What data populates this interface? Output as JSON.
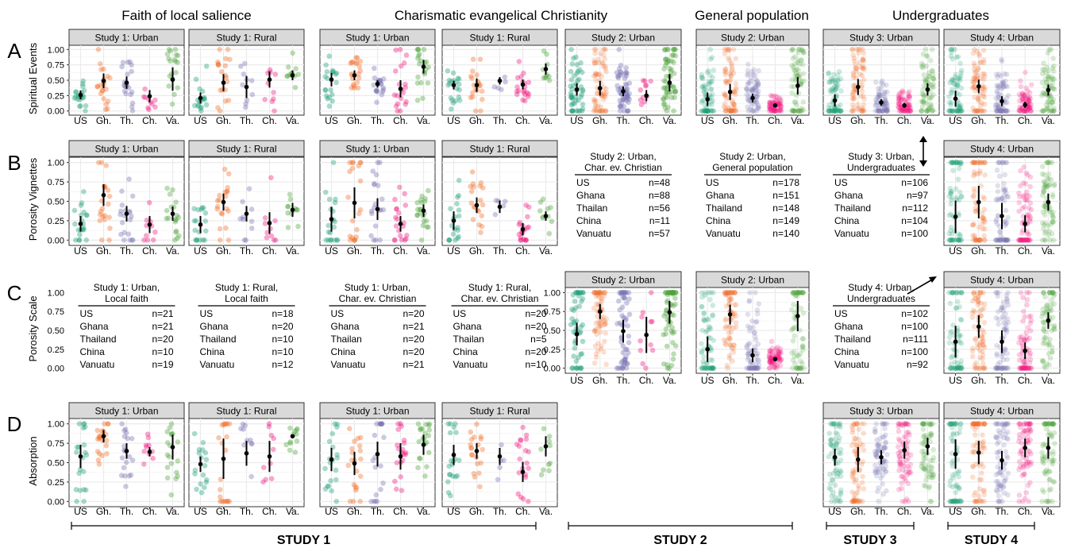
{
  "chart_data": {
    "type": "scatter",
    "description_free": true,
    "categories": [
      "US",
      "Gh.",
      "Th.",
      "Ch.",
      "Va."
    ],
    "category_colors": [
      "#1b9e77",
      "#f26b24",
      "#7570b3",
      "#f0157f",
      "#4da33b"
    ],
    "panel_background": "#ebebeb",
    "strip_background": "#d9d9d9",
    "ylim": [
      0,
      1
    ],
    "yticks": [
      "0.00",
      "0.25",
      "0.50",
      "0.75",
      "1.00"
    ],
    "grid": true,
    "column_headers": [
      "Faith of local salience",
      "Charismatic evangelical Christianity",
      "General population",
      "Undergraduates"
    ],
    "row_letters": [
      "A",
      "B",
      "C",
      "D"
    ],
    "row_ylabels": [
      "Spiritual Events",
      "Porosity Vignettes",
      "Porosity Scale",
      "Absorption"
    ],
    "study_labels": [
      "STUDY 1",
      "STUDY 1",
      "STUDY 2",
      "STUDY 3",
      "STUDY 4"
    ],
    "panels": [
      {
        "row": 0,
        "col": 0,
        "title": "Study 1: Urban",
        "means": [
          0.26,
          0.49,
          0.46,
          0.24,
          0.51
        ],
        "lo": [
          0.19,
          0.37,
          0.36,
          0.14,
          0.33
        ],
        "hi": [
          0.33,
          0.61,
          0.56,
          0.34,
          0.71
        ],
        "n": [
          21,
          21,
          20,
          10,
          19
        ]
      },
      {
        "row": 0,
        "col": 1,
        "title": "Study 1: Rural",
        "means": [
          0.21,
          0.46,
          0.39,
          0.51,
          0.58
        ],
        "lo": [
          0.12,
          0.32,
          0.21,
          0.38,
          0.5
        ],
        "hi": [
          0.3,
          0.6,
          0.57,
          0.64,
          0.66
        ],
        "n": [
          18,
          20,
          10,
          10,
          12
        ]
      },
      {
        "row": 0,
        "col": 2,
        "title": "Study 1: Urban",
        "means": [
          0.51,
          0.58,
          0.44,
          0.36,
          0.72
        ],
        "lo": [
          0.4,
          0.5,
          0.38,
          0.22,
          0.61
        ],
        "hi": [
          0.62,
          0.66,
          0.5,
          0.5,
          0.83
        ],
        "n": [
          20,
          21,
          20,
          20,
          21
        ]
      },
      {
        "row": 0,
        "col": 3,
        "title": "Study 1: Rural",
        "means": [
          0.42,
          0.42,
          0.49,
          0.43,
          0.68
        ],
        "lo": [
          0.35,
          0.31,
          0.43,
          0.35,
          0.59
        ],
        "hi": [
          0.49,
          0.53,
          0.55,
          0.51,
          0.77
        ],
        "n": [
          20,
          20,
          5,
          20,
          10
        ]
      },
      {
        "row": 0,
        "col": 4,
        "title": "Study 2: Urban",
        "means": [
          0.35,
          0.37,
          0.32,
          0.25,
          0.46
        ],
        "lo": [
          0.25,
          0.25,
          0.24,
          0.16,
          0.32
        ],
        "hi": [
          0.45,
          0.49,
          0.4,
          0.34,
          0.6
        ],
        "n": [
          48,
          88,
          56,
          11,
          57
        ]
      },
      {
        "row": 0,
        "col": 5,
        "title": "Study 2: Urban",
        "means": [
          0.19,
          0.31,
          0.21,
          0.09,
          0.41
        ],
        "lo": [
          0.08,
          0.18,
          0.14,
          0.06,
          0.27
        ],
        "hi": [
          0.3,
          0.44,
          0.28,
          0.12,
          0.55
        ],
        "n": [
          178,
          151,
          148,
          149,
          140
        ]
      },
      {
        "row": 0,
        "col": 6,
        "title": "Study 3: Urban",
        "means": [
          0.17,
          0.39,
          0.14,
          0.09,
          0.35
        ],
        "lo": [
          0.07,
          0.26,
          0.09,
          0.05,
          0.25
        ],
        "hi": [
          0.27,
          0.52,
          0.19,
          0.13,
          0.45
        ],
        "n": [
          106,
          97,
          112,
          104,
          100
        ]
      },
      {
        "row": 0,
        "col": 7,
        "title": "Study 4: Urban",
        "means": [
          0.2,
          0.4,
          0.16,
          0.1,
          0.34
        ],
        "lo": [
          0.07,
          0.29,
          0.08,
          0.05,
          0.25
        ],
        "hi": [
          0.33,
          0.51,
          0.24,
          0.15,
          0.43
        ],
        "n": [
          102,
          100,
          111,
          100,
          92
        ]
      },
      {
        "row": 1,
        "col": 0,
        "title": "Study 1: Urban",
        "means": [
          0.21,
          0.58,
          0.34,
          0.2,
          0.34
        ],
        "lo": [
          0.11,
          0.44,
          0.24,
          0.09,
          0.25
        ],
        "hi": [
          0.31,
          0.72,
          0.44,
          0.31,
          0.43
        ],
        "n": [
          21,
          21,
          20,
          10,
          19
        ]
      },
      {
        "row": 1,
        "col": 1,
        "title": "Study 1: Rural",
        "means": [
          0.2,
          0.49,
          0.34,
          0.22,
          0.39
        ],
        "lo": [
          0.09,
          0.38,
          0.24,
          0.08,
          0.3
        ],
        "hi": [
          0.31,
          0.6,
          0.44,
          0.36,
          0.48
        ],
        "n": [
          18,
          20,
          10,
          10,
          12
        ]
      },
      {
        "row": 1,
        "col": 2,
        "title": "Study 1: Urban",
        "means": [
          0.27,
          0.48,
          0.4,
          0.21,
          0.38
        ],
        "lo": [
          0.11,
          0.28,
          0.26,
          0.11,
          0.3
        ],
        "hi": [
          0.43,
          0.68,
          0.54,
          0.31,
          0.46
        ],
        "n": [
          20,
          21,
          20,
          20,
          21
        ]
      },
      {
        "row": 1,
        "col": 3,
        "title": "Study 1: Rural",
        "means": [
          0.25,
          0.45,
          0.43,
          0.14,
          0.31
        ],
        "lo": [
          0.13,
          0.35,
          0.35,
          0.06,
          0.25
        ],
        "hi": [
          0.37,
          0.55,
          0.51,
          0.22,
          0.37
        ],
        "n": [
          20,
          20,
          5,
          20,
          10
        ]
      },
      {
        "row": 1,
        "col": 7,
        "title": "Study 4: Urban",
        "means": [
          0.3,
          0.49,
          0.31,
          0.21,
          0.49
        ],
        "lo": [
          0.09,
          0.28,
          0.14,
          0.1,
          0.38
        ],
        "hi": [
          0.51,
          0.7,
          0.48,
          0.32,
          0.6
        ],
        "n": [
          102,
          100,
          111,
          100,
          92
        ]
      },
      {
        "row": 2,
        "col": 4,
        "title": "Study 2: Urban",
        "means": [
          0.45,
          0.75,
          0.49,
          0.44,
          0.74
        ],
        "lo": [
          0.3,
          0.65,
          0.34,
          0.2,
          0.59
        ],
        "hi": [
          0.6,
          0.85,
          0.64,
          0.68,
          0.89
        ],
        "n": [
          48,
          88,
          56,
          11,
          57
        ]
      },
      {
        "row": 2,
        "col": 5,
        "title": "Study 2: Urban",
        "means": [
          0.25,
          0.71,
          0.17,
          0.12,
          0.69
        ],
        "lo": [
          0.08,
          0.58,
          0.08,
          0.1,
          0.49
        ],
        "hi": [
          0.42,
          0.84,
          0.26,
          0.14,
          0.89
        ],
        "n": [
          178,
          151,
          148,
          149,
          140
        ]
      },
      {
        "row": 2,
        "col": 7,
        "title": "Study 4: Urban",
        "means": [
          0.35,
          0.55,
          0.35,
          0.23,
          0.63
        ],
        "lo": [
          0.14,
          0.4,
          0.2,
          0.12,
          0.52
        ],
        "hi": [
          0.56,
          0.7,
          0.5,
          0.34,
          0.74
        ],
        "n": [
          102,
          100,
          111,
          100,
          92
        ]
      },
      {
        "row": 3,
        "col": 0,
        "title": "Study 1: Urban",
        "means": [
          0.58,
          0.84,
          0.65,
          0.64,
          0.7
        ],
        "lo": [
          0.43,
          0.76,
          0.55,
          0.58,
          0.54
        ],
        "hi": [
          0.73,
          0.92,
          0.75,
          0.7,
          0.86
        ],
        "n": [
          21,
          21,
          20,
          10,
          19
        ]
      },
      {
        "row": 3,
        "col": 1,
        "title": "Study 1: Rural",
        "means": [
          0.48,
          0.55,
          0.62,
          0.58,
          0.84
        ],
        "lo": [
          0.38,
          0.29,
          0.46,
          0.38,
          0.84
        ],
        "hi": [
          0.58,
          0.81,
          0.78,
          0.78,
          0.84
        ],
        "n": [
          18,
          20,
          10,
          10,
          12
        ]
      },
      {
        "row": 3,
        "col": 2,
        "title": "Study 1: Urban",
        "means": [
          0.54,
          0.49,
          0.61,
          0.58,
          0.73
        ],
        "lo": [
          0.39,
          0.34,
          0.45,
          0.41,
          0.6
        ],
        "hi": [
          0.69,
          0.64,
          0.77,
          0.75,
          0.86
        ],
        "n": [
          20,
          21,
          20,
          20,
          21
        ]
      },
      {
        "row": 3,
        "col": 3,
        "title": "Study 1: Rural",
        "means": [
          0.6,
          0.65,
          0.58,
          0.38,
          0.71
        ],
        "lo": [
          0.47,
          0.55,
          0.47,
          0.25,
          0.58
        ],
        "hi": [
          0.73,
          0.75,
          0.69,
          0.51,
          0.84
        ],
        "n": [
          20,
          20,
          5,
          20,
          10
        ]
      },
      {
        "row": 3,
        "col": 6,
        "title": "Study 3: Urban",
        "means": [
          0.57,
          0.54,
          0.57,
          0.66,
          0.71
        ],
        "lo": [
          0.46,
          0.38,
          0.48,
          0.55,
          0.6
        ],
        "hi": [
          0.68,
          0.7,
          0.66,
          0.77,
          0.82
        ],
        "n": [
          106,
          97,
          112,
          104,
          100
        ]
      },
      {
        "row": 3,
        "col": 7,
        "title": "Study 4: Urban",
        "means": [
          0.61,
          0.63,
          0.53,
          0.69,
          0.69
        ],
        "lo": [
          0.42,
          0.48,
          0.41,
          0.57,
          0.55
        ],
        "hi": [
          0.8,
          0.78,
          0.65,
          0.81,
          0.83
        ],
        "n": [
          102,
          100,
          111,
          100,
          92
        ]
      }
    ],
    "sample_tables": [
      {
        "row": 1,
        "col": 4,
        "title": [
          "Study 2: Urban,",
          "Char. ev. Christian"
        ],
        "rows": [
          [
            "US",
            "n=48"
          ],
          [
            "Ghana",
            "n=88"
          ],
          [
            "Thailan",
            "n=56"
          ],
          [
            "China",
            "n=11"
          ],
          [
            "Vanuatu",
            "n=57"
          ]
        ]
      },
      {
        "row": 1,
        "col": 5,
        "title": [
          "Study 2: Urban,",
          "General population"
        ],
        "rows": [
          [
            "US",
            "n=178"
          ],
          [
            "Ghana",
            "n=151"
          ],
          [
            "Thailand",
            "n=148"
          ],
          [
            "China",
            "n=149"
          ],
          [
            "Vanuatu",
            "n=140"
          ]
        ]
      },
      {
        "row": 1,
        "col": 6,
        "title": [
          "Study 3: Urban,",
          "Undergraduates"
        ],
        "rows": [
          [
            "US",
            "n=106"
          ],
          [
            "Ghana",
            "n=97"
          ],
          [
            "Thailand",
            "n=112"
          ],
          [
            "China",
            "n=104"
          ],
          [
            "Vanuatu",
            "n=100"
          ]
        ]
      },
      {
        "row": 2,
        "col": 0,
        "title": [
          "Study 1: Urban,",
          "Local faith"
        ],
        "rows": [
          [
            "US",
            "n=21"
          ],
          [
            "Ghana",
            "n=21"
          ],
          [
            "Thailand",
            "n=20"
          ],
          [
            "China",
            "n=10"
          ],
          [
            "Vanuatu",
            "n=19"
          ]
        ]
      },
      {
        "row": 2,
        "col": 1,
        "title": [
          "Study 1: Rural,",
          "Local faith"
        ],
        "rows": [
          [
            "US",
            "n=18"
          ],
          [
            "Ghana",
            "n=20"
          ],
          [
            "Thailand",
            "n=10"
          ],
          [
            "China",
            "n=10"
          ],
          [
            "Vanuatu",
            "n=12"
          ]
        ]
      },
      {
        "row": 2,
        "col": 2,
        "title": [
          "Study 1: Urban,",
          "Char. ev. Christian"
        ],
        "rows": [
          [
            "US",
            "n=20"
          ],
          [
            "Ghana",
            "n=21"
          ],
          [
            "Thailan",
            "n=20"
          ],
          [
            "China",
            "n=20"
          ],
          [
            "Vanuatu",
            "n=21"
          ]
        ]
      },
      {
        "row": 2,
        "col": 3,
        "title": [
          "Study 1: Rural,",
          "Char. ev. Christian"
        ],
        "rows": [
          [
            "US",
            "n=20"
          ],
          [
            "Ghana",
            "n=20"
          ],
          [
            "Thailan",
            "n=5"
          ],
          [
            "China",
            "n=20"
          ],
          [
            "Vanuatu",
            "n=10"
          ]
        ]
      },
      {
        "row": 2,
        "col": 6,
        "title": [
          "Study 4: Urban,",
          "Undergraduates"
        ],
        "rows": [
          [
            "US",
            "n=102"
          ],
          [
            "Ghana",
            "n=100"
          ],
          [
            "Thailand",
            "n=111"
          ],
          [
            "China",
            "n=100"
          ],
          [
            "Vanuatu",
            "n=92"
          ]
        ]
      }
    ]
  }
}
